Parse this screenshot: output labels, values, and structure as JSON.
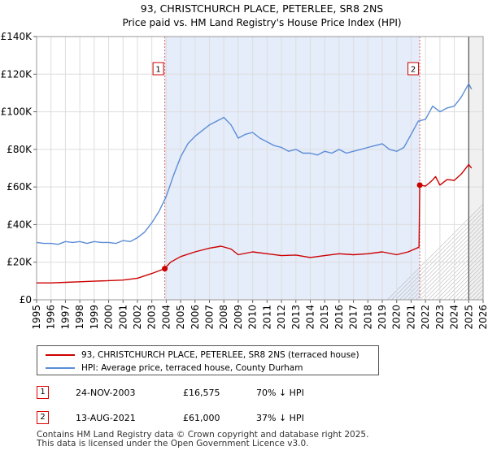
{
  "chart_data": {
    "type": "line",
    "title": "93, CHRISTCHURCH PLACE, PETERLEE, SR8 2NS",
    "subtitle": "Price paid vs. HM Land Registry's House Price Index (HPI)",
    "x_ticks": [
      "1995",
      "1996",
      "1997",
      "1998",
      "1999",
      "2000",
      "2001",
      "2002",
      "2003",
      "2004",
      "2005",
      "2006",
      "2007",
      "2008",
      "2009",
      "2010",
      "2011",
      "2012",
      "2013",
      "2014",
      "2015",
      "2016",
      "2017",
      "2018",
      "2019",
      "2020",
      "2021",
      "2022",
      "2023",
      "2024",
      "2025",
      "2026"
    ],
    "xlim": [
      1995,
      2026
    ],
    "y_ticks": [
      "£0",
      "£20K",
      "£40K",
      "£60K",
      "£80K",
      "£100K",
      "£120K",
      "£140K"
    ],
    "ylim": [
      0,
      140000
    ],
    "grid": true,
    "series": [
      {
        "name": "93, CHRISTCHURCH PLACE, PETERLEE, SR8 2NS (terraced house)",
        "color": "#cc0000",
        "points": [
          [
            1995.0,
            9000
          ],
          [
            1996.0,
            9000
          ],
          [
            1997.0,
            9300
          ],
          [
            1998.0,
            9600
          ],
          [
            1999.0,
            9900
          ],
          [
            2000.0,
            10200
          ],
          [
            2001.0,
            10500
          ],
          [
            2002.0,
            11500
          ],
          [
            2003.0,
            14000
          ],
          [
            2003.9,
            16575
          ],
          [
            2004.3,
            20000
          ],
          [
            2005.0,
            23000
          ],
          [
            2006.0,
            25500
          ],
          [
            2007.0,
            27500
          ],
          [
            2007.8,
            28500
          ],
          [
            2008.5,
            27000
          ],
          [
            2009.0,
            24000
          ],
          [
            2010.0,
            25500
          ],
          [
            2011.0,
            24500
          ],
          [
            2012.0,
            23500
          ],
          [
            2013.0,
            23800
          ],
          [
            2014.0,
            22500
          ],
          [
            2015.0,
            23500
          ],
          [
            2016.0,
            24500
          ],
          [
            2017.0,
            24000
          ],
          [
            2018.0,
            24500
          ],
          [
            2019.0,
            25500
          ],
          [
            2020.0,
            24000
          ],
          [
            2020.8,
            25500
          ],
          [
            2021.55,
            28000
          ],
          [
            2021.6,
            61000
          ],
          [
            2022.0,
            60500
          ],
          [
            2022.4,
            63000
          ],
          [
            2022.7,
            65500
          ],
          [
            2023.0,
            61000
          ],
          [
            2023.5,
            64000
          ],
          [
            2024.0,
            63500
          ],
          [
            2024.5,
            67000
          ],
          [
            2025.0,
            72000
          ],
          [
            2025.2,
            70000
          ]
        ]
      },
      {
        "name": "HPI: Average price, terraced house, County Durham",
        "color": "#5b8dd6",
        "points": [
          [
            1995.0,
            30500
          ],
          [
            1995.5,
            30000
          ],
          [
            1996.0,
            30000
          ],
          [
            1996.5,
            29500
          ],
          [
            1997.0,
            31000
          ],
          [
            1997.5,
            30500
          ],
          [
            1998.0,
            31000
          ],
          [
            1998.5,
            30000
          ],
          [
            1999.0,
            31000
          ],
          [
            1999.5,
            30500
          ],
          [
            2000.0,
            30500
          ],
          [
            2000.5,
            30000
          ],
          [
            2001.0,
            31500
          ],
          [
            2001.5,
            31000
          ],
          [
            2002.0,
            33000
          ],
          [
            2002.5,
            36000
          ],
          [
            2003.0,
            41000
          ],
          [
            2003.5,
            47000
          ],
          [
            2004.0,
            55000
          ],
          [
            2004.5,
            66000
          ],
          [
            2005.0,
            76000
          ],
          [
            2005.5,
            83000
          ],
          [
            2006.0,
            87000
          ],
          [
            2006.5,
            90000
          ],
          [
            2007.0,
            93000
          ],
          [
            2007.5,
            95000
          ],
          [
            2008.0,
            97000
          ],
          [
            2008.5,
            93000
          ],
          [
            2009.0,
            86000
          ],
          [
            2009.5,
            88000
          ],
          [
            2010.0,
            89000
          ],
          [
            2010.5,
            86000
          ],
          [
            2011.0,
            84000
          ],
          [
            2011.5,
            82000
          ],
          [
            2012.0,
            81000
          ],
          [
            2012.5,
            79000
          ],
          [
            2013.0,
            80000
          ],
          [
            2013.5,
            78000
          ],
          [
            2014.0,
            78000
          ],
          [
            2014.5,
            77000
          ],
          [
            2015.0,
            79000
          ],
          [
            2015.5,
            78000
          ],
          [
            2016.0,
            80000
          ],
          [
            2016.5,
            78000
          ],
          [
            2017.0,
            79000
          ],
          [
            2017.5,
            80000
          ],
          [
            2018.0,
            81000
          ],
          [
            2018.5,
            82000
          ],
          [
            2019.0,
            83000
          ],
          [
            2019.5,
            80000
          ],
          [
            2020.0,
            79000
          ],
          [
            2020.5,
            81000
          ],
          [
            2021.0,
            88000
          ],
          [
            2021.5,
            95000
          ],
          [
            2022.0,
            96000
          ],
          [
            2022.5,
            103000
          ],
          [
            2023.0,
            100000
          ],
          [
            2023.5,
            102000
          ],
          [
            2024.0,
            103000
          ],
          [
            2024.5,
            108000
          ],
          [
            2025.0,
            115000
          ],
          [
            2025.2,
            112000
          ]
        ]
      }
    ],
    "sales": [
      {
        "label": "1",
        "x": 2003.9,
        "y": 16575
      },
      {
        "label": "2",
        "x": 2021.6,
        "y": 61000
      }
    ],
    "shaded_region": [
      2003.9,
      2021.6
    ],
    "forecast_start": 2025.0
  },
  "legend": {
    "entries": [
      {
        "label": "93, CHRISTCHURCH PLACE, PETERLEE, SR8 2NS (terraced house)",
        "color": "#cc0000"
      },
      {
        "label": "HPI: Average price, terraced house, County Durham",
        "color": "#5b8dd6"
      }
    ]
  },
  "sales_table": [
    {
      "badge": "1",
      "date": "24-NOV-2003",
      "price": "£16,575",
      "hpi": "70% ↓ HPI"
    },
    {
      "badge": "2",
      "date": "13-AUG-2021",
      "price": "£61,000",
      "hpi": "37% ↓ HPI"
    }
  ],
  "footer": {
    "line1": "Contains HM Land Registry data © Crown copyright and database right 2025.",
    "line2": "This data is licensed under the Open Government Licence v3.0."
  }
}
